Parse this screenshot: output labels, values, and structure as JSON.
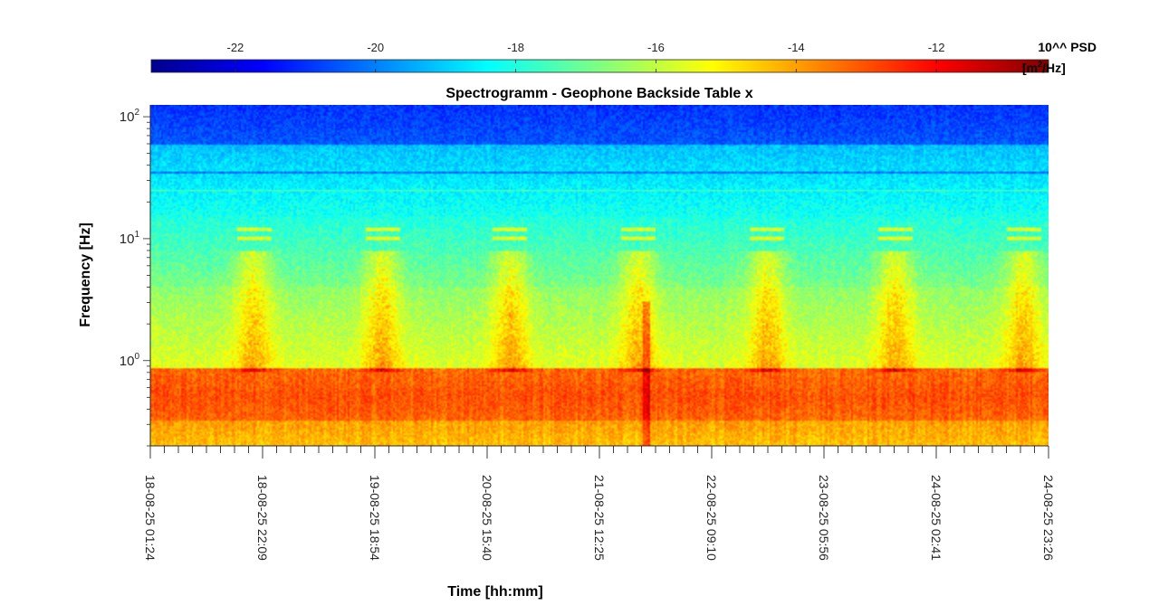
{
  "chart_data": {
    "type": "heatmap",
    "title": "Spectrogramm - Geophone Backside Table x",
    "xlabel": "Time [hh:mm]",
    "ylabel": "Frequency [Hz]",
    "x_ticks": [
      "18-08-25 01:24",
      "18-08-25 22:09",
      "19-08-25 18:54",
      "20-08-25 15:40",
      "21-08-25 12:25",
      "22-08-25 09:10",
      "23-08-25 05:56",
      "24-08-25 02:41",
      "24-08-25 23:26"
    ],
    "y_scale": "log",
    "ylim": [
      0.2,
      125
    ],
    "y_ticks": [
      {
        "value": 1,
        "base": "10",
        "exp": "0"
      },
      {
        "value": 10,
        "base": "10",
        "exp": "1"
      },
      {
        "value": 100,
        "base": "10",
        "exp": "2"
      }
    ],
    "colorbar": {
      "title": "10^^ PSD",
      "unit_prefix": "[m",
      "unit_exp": "2",
      "unit_suffix": "/Hz]",
      "ticks": [
        "-22",
        "-20",
        "-18",
        "-16",
        "-14",
        "-12"
      ],
      "tick_values": [
        -22,
        -20,
        -18,
        -16,
        -14,
        -12
      ],
      "range": [
        -23.2,
        -10.4
      ],
      "colormap": "jet"
    },
    "value_model": {
      "description_units": "log10 PSD",
      "high_freq_level": -20.5,
      "mid_freq_level": -18,
      "low_freq_level": -13,
      "day_activity_boost": 1.6,
      "line_frequencies_hz": [
        12,
        10,
        35,
        25
      ]
    }
  }
}
